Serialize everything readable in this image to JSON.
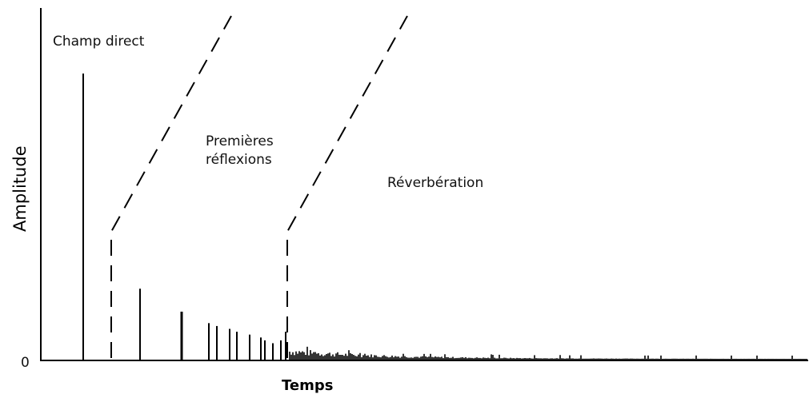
{
  "labels": {
    "champ_direct": "Champ direct",
    "premieres_line1": "Premières",
    "premieres_line2": "réflexions",
    "reverberation": "Réverbération",
    "y_axis": "Amplitude",
    "x_axis": "Temps",
    "zero": "0"
  },
  "colors": {
    "ink": "#000000",
    "background": "#ffffff"
  },
  "impulses": {
    "direct": {
      "amplitude": 1.0
    },
    "early_reflections": [
      0.25,
      0.17,
      0.13,
      0.12,
      0.11,
      0.1,
      0.09,
      0.08,
      0.07,
      0.06,
      0.07,
      0.1
    ]
  }
}
